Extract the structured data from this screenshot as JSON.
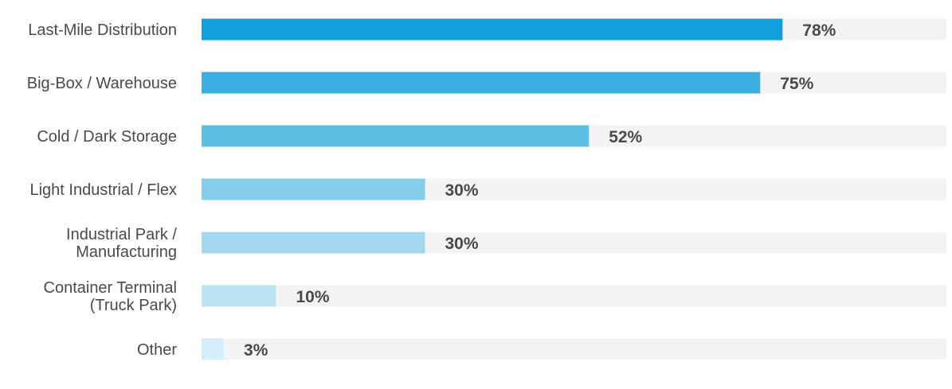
{
  "chart_data": {
    "type": "bar",
    "orientation": "horizontal",
    "categories": [
      "Last-Mile Distribution",
      "Big-Box / Warehouse",
      "Cold / Dark Storage",
      "Light Industrial / Flex",
      "Industrial Park / Manufacturing",
      "Container Terminal (Truck Park)",
      "Other"
    ],
    "category_lines": [
      [
        "Last-Mile Distribution"
      ],
      [
        "Big-Box / Warehouse"
      ],
      [
        "Cold / Dark Storage"
      ],
      [
        "Light Industrial / Flex"
      ],
      [
        "Industrial Park /",
        "Manufacturing"
      ],
      [
        "Container Terminal",
        "(Truck Park)"
      ],
      [
        "Other"
      ]
    ],
    "values": [
      78,
      75,
      52,
      30,
      30,
      10,
      3
    ],
    "value_labels": [
      "78%",
      "75%",
      "52%",
      "30%",
      "30%",
      "10%",
      "3%"
    ],
    "xlim": [
      0,
      100
    ],
    "grid": false,
    "title": "",
    "xlabel": "",
    "ylabel": ""
  },
  "colors": {
    "bars": [
      "#0f9fdc",
      "#3bb0e0",
      "#5fc0e6",
      "#86cdeb",
      "#a2d9f1",
      "#bde4f4",
      "#d3eef8"
    ],
    "track": "#f3f3f5",
    "text": "#4a4a4a"
  }
}
